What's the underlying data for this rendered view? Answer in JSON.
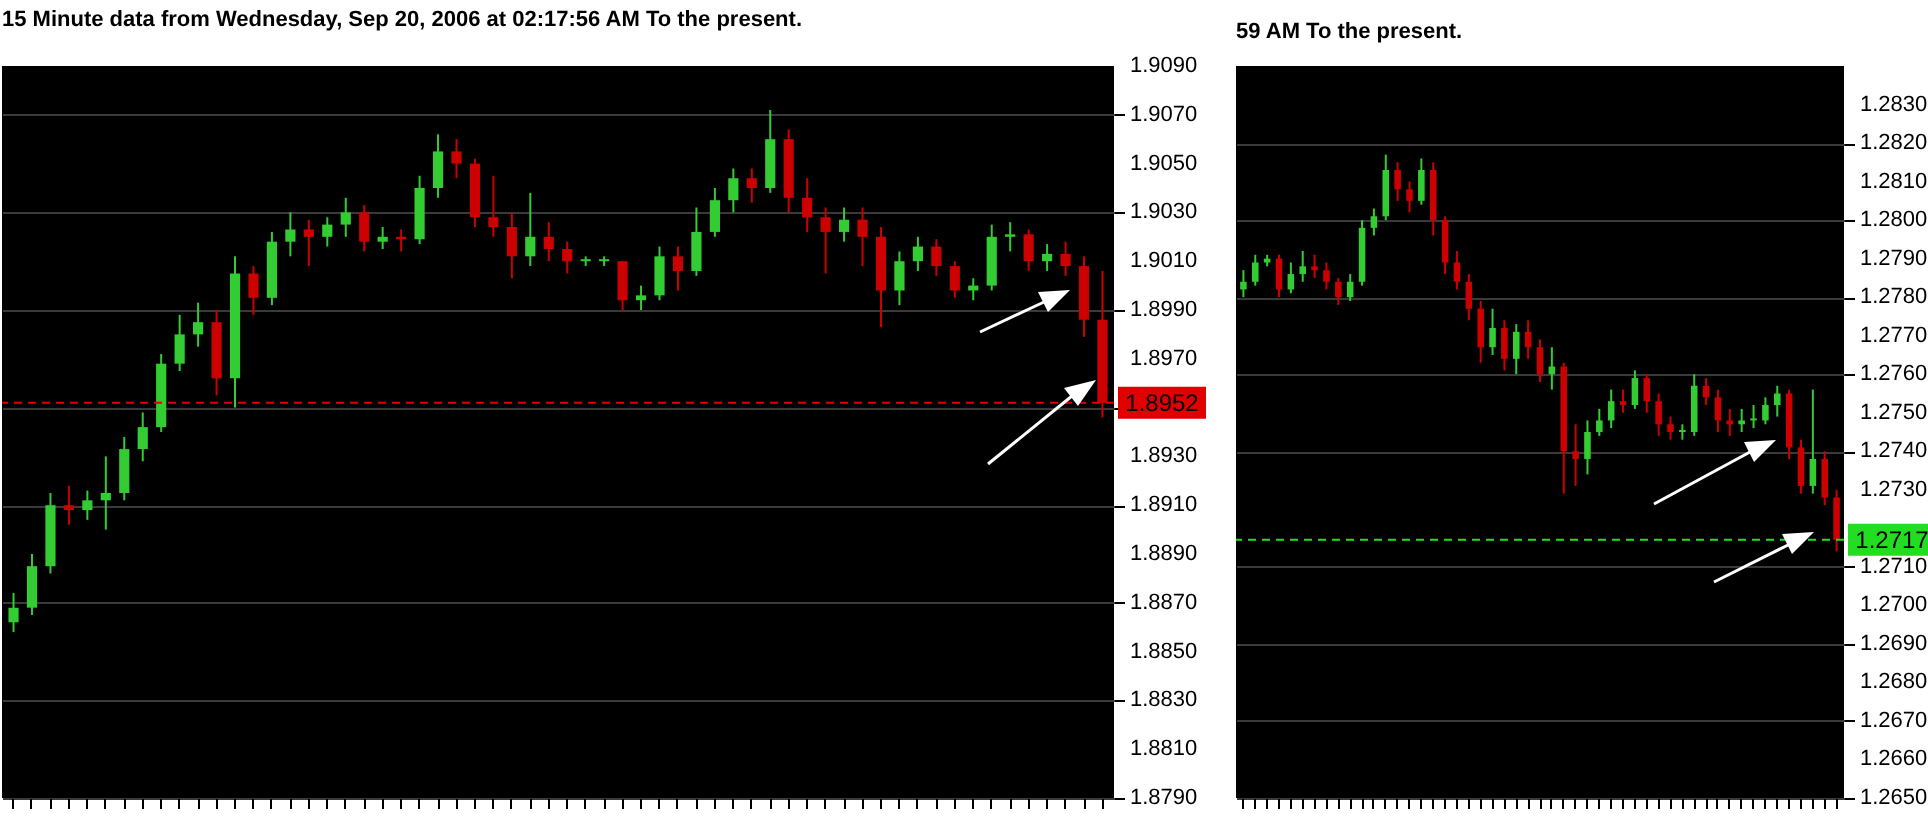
{
  "chart_data": [
    {
      "type": "candlestick",
      "title": "15 Minute  data from Wednesday, Sep 20, 2006 at 02:17:56 AM To the present.",
      "colors": [
        "#33cc33",
        "#33cc33",
        "#33cc33",
        "#cc0000",
        "#33cc33",
        "#33cc33",
        "#33cc33",
        "#33cc33",
        "#33cc33",
        "#33cc33",
        "#33cc33",
        "#cc0000",
        "#33cc33",
        "#cc0000",
        "#33cc33",
        "#33cc33",
        "#cc0000",
        "#33cc33",
        "#33cc33",
        "#cc0000",
        "#33cc33",
        "#cc0000",
        "#33cc33",
        "#33cc33",
        "#cc0000",
        "#cc0000",
        "#cc0000",
        "#cc0000",
        "#33cc33",
        "#cc0000",
        "#cc0000",
        "#33cc33",
        "#33cc33",
        "#cc0000",
        "#33cc33",
        "#33cc33",
        "#cc0000",
        "#33cc33",
        "#33cc33",
        "#33cc33",
        "#cc0000",
        "#33cc33",
        "#cc0000",
        "#cc0000",
        "#cc0000",
        "#33cc33",
        "#cc0000",
        "#cc0000",
        "#33cc33",
        "#33cc33",
        "#cc0000",
        "#cc0000",
        "#33cc33",
        "#33cc33",
        "#33cc33",
        "#cc0000",
        "#33cc33",
        "#cc0000",
        "#cc0000",
        "#cc0000"
      ],
      "categories": [
        null,
        null,
        null,
        null,
        null,
        null,
        null,
        null,
        null,
        null,
        null,
        null,
        null,
        null,
        null,
        null,
        null,
        null,
        null,
        null,
        null,
        null,
        null,
        null,
        null,
        null,
        null,
        null,
        null,
        null,
        null,
        null,
        null,
        null,
        null,
        null,
        null,
        null,
        null,
        null,
        null,
        null,
        null,
        null,
        null,
        null,
        null,
        null,
        null,
        null,
        null,
        null,
        null,
        null,
        null,
        null,
        null,
        null,
        null,
        null
      ],
      "ohlc": [
        [
          1.8862,
          1.8874,
          1.8858,
          1.8868
        ],
        [
          1.8868,
          1.889,
          1.8865,
          1.8885
        ],
        [
          1.8885,
          1.8915,
          1.8882,
          1.891
        ],
        [
          1.891,
          1.8918,
          1.8902,
          1.8908
        ],
        [
          1.8908,
          1.8916,
          1.8904,
          1.8912
        ],
        [
          1.8912,
          1.893,
          1.89,
          1.8915
        ],
        [
          1.8915,
          1.8938,
          1.8912,
          1.8933
        ],
        [
          1.8933,
          1.8948,
          1.8928,
          1.8942
        ],
        [
          1.8942,
          1.8972,
          1.894,
          1.8968
        ],
        [
          1.8968,
          1.8988,
          1.8965,
          1.898
        ],
        [
          1.898,
          1.8993,
          1.8975,
          1.8985
        ],
        [
          1.8985,
          1.899,
          1.8955,
          1.8962
        ],
        [
          1.8962,
          1.9012,
          1.895,
          1.9005
        ],
        [
          1.9005,
          1.9008,
          1.8988,
          1.8995
        ],
        [
          1.8995,
          1.9022,
          1.8992,
          1.9018
        ],
        [
          1.9018,
          1.903,
          1.9012,
          1.9023
        ],
        [
          1.9023,
          1.9027,
          1.9008,
          1.902
        ],
        [
          1.902,
          1.9028,
          1.9016,
          1.9025
        ],
        [
          1.9025,
          1.9036,
          1.902,
          1.903
        ],
        [
          1.903,
          1.9033,
          1.9014,
          1.9018
        ],
        [
          1.9018,
          1.9024,
          1.9015,
          1.902
        ],
        [
          1.902,
          1.9023,
          1.9014,
          1.9019
        ],
        [
          1.9019,
          1.9045,
          1.9017,
          1.904
        ],
        [
          1.904,
          1.9062,
          1.9036,
          1.9055
        ],
        [
          1.9055,
          1.906,
          1.9044,
          1.905
        ],
        [
          1.905,
          1.9052,
          1.9024,
          1.9028
        ],
        [
          1.9028,
          1.9045,
          1.902,
          1.9024
        ],
        [
          1.9024,
          1.903,
          1.9003,
          1.9012
        ],
        [
          1.9012,
          1.9038,
          1.9008,
          1.902
        ],
        [
          1.902,
          1.9026,
          1.901,
          1.9015
        ],
        [
          1.9015,
          1.9018,
          1.9005,
          1.901
        ],
        [
          1.901,
          1.9012,
          1.9008,
          1.901
        ],
        [
          1.901,
          1.9012,
          1.9008,
          1.901
        ],
        [
          1.901,
          1.901,
          1.899,
          1.8994
        ],
        [
          1.8994,
          1.9,
          1.899,
          1.8996
        ],
        [
          1.8996,
          1.9016,
          1.8994,
          1.9012
        ],
        [
          1.9012,
          1.9016,
          1.8998,
          1.9006
        ],
        [
          1.9006,
          1.9032,
          1.9004,
          1.9022
        ],
        [
          1.9022,
          1.904,
          1.902,
          1.9035
        ],
        [
          1.9035,
          1.9048,
          1.903,
          1.9044
        ],
        [
          1.9044,
          1.9048,
          1.9034,
          1.904
        ],
        [
          1.904,
          1.9072,
          1.9038,
          1.906
        ],
        [
          1.906,
          1.9064,
          1.903,
          1.9036
        ],
        [
          1.9036,
          1.9044,
          1.9022,
          1.9028
        ],
        [
          1.9028,
          1.9032,
          1.9005,
          1.9022
        ],
        [
          1.9022,
          1.9032,
          1.9018,
          1.9027
        ],
        [
          1.9027,
          1.9032,
          1.9008,
          1.902
        ],
        [
          1.902,
          1.9024,
          1.8983,
          1.8998
        ],
        [
          1.8998,
          1.9014,
          1.8992,
          1.901
        ],
        [
          1.901,
          1.902,
          1.9006,
          1.9016
        ],
        [
          1.9016,
          1.9019,
          1.9004,
          1.9008
        ],
        [
          1.9008,
          1.901,
          1.8995,
          1.8998
        ],
        [
          1.8998,
          1.9003,
          1.8994,
          1.9
        ],
        [
          1.9,
          1.9025,
          1.8998,
          1.902
        ],
        [
          1.902,
          1.9026,
          1.9014,
          1.9021
        ],
        [
          1.9021,
          1.9023,
          1.9006,
          1.901
        ],
        [
          1.901,
          1.9017,
          1.9006,
          1.9013
        ],
        [
          1.9013,
          1.9018,
          1.9004,
          1.9008
        ],
        [
          1.9008,
          1.9012,
          1.8979,
          1.8986
        ],
        [
          1.8986,
          1.9006,
          1.8946,
          1.8952
        ]
      ],
      "ylim": [
        1.879,
        1.909
      ],
      "yticks": [
        {
          "value": 1.879,
          "label": "1.8790"
        },
        {
          "value": 1.881,
          "label": "1.8810"
        },
        {
          "value": 1.883,
          "label": "1.8830"
        },
        {
          "value": 1.885,
          "label": "1.8850"
        },
        {
          "value": 1.887,
          "label": "1.8870"
        },
        {
          "value": 1.889,
          "label": "1.8890"
        },
        {
          "value": 1.891,
          "label": "1.8910"
        },
        {
          "value": 1.893,
          "label": "1.8930"
        },
        {
          "value": 1.895,
          "label": null
        },
        {
          "value": 1.897,
          "label": "1.8970"
        },
        {
          "value": 1.899,
          "label": "1.8990"
        },
        {
          "value": 1.901,
          "label": "1.9010"
        },
        {
          "value": 1.903,
          "label": "1.9030"
        },
        {
          "value": 1.905,
          "label": "1.9050"
        },
        {
          "value": 1.907,
          "label": "1.9070"
        },
        {
          "value": 1.909,
          "label": "1.9090"
        }
      ],
      "grid": "y",
      "tick_labels": "y",
      "ref_lines": [
        {
          "axis": "y",
          "value": 1.8952,
          "label": "1.8952",
          "color": "#e00000",
          "line_style": "dashed"
        }
      ]
    },
    {
      "type": "candlestick",
      "title": "59 AM To the present.",
      "colors": [
        "#33cc33",
        "#33cc33",
        "#33cc33",
        "#cc0000",
        "#33cc33",
        "#33cc33",
        "#cc0000",
        "#cc0000",
        "#cc0000",
        "#33cc33",
        "#33cc33",
        "#33cc33",
        "#33cc33",
        "#cc0000",
        "#cc0000",
        "#33cc33",
        "#cc0000",
        "#cc0000",
        "#cc0000",
        "#cc0000",
        "#cc0000",
        "#33cc33",
        "#cc0000",
        "#33cc33",
        "#cc0000",
        "#cc0000",
        "#33cc33",
        "#cc0000",
        "#cc0000",
        "#33cc33",
        "#33cc33",
        "#33cc33",
        "#cc0000",
        "#33cc33",
        "#cc0000",
        "#cc0000",
        "#cc0000",
        "#33cc33",
        "#33cc33",
        "#cc0000",
        "#cc0000",
        "#cc0000",
        "#33cc33",
        "#33cc33",
        "#33cc33",
        "#33cc33",
        "#cc0000",
        "#cc0000",
        "#33cc33",
        "#cc0000",
        "#cc0000"
      ],
      "categories": [
        null,
        null,
        null,
        null,
        null,
        null,
        null,
        null,
        null,
        null,
        null,
        null,
        null,
        null,
        null,
        null,
        null,
        null,
        null,
        null,
        null,
        null,
        null,
        null,
        null,
        null,
        null,
        null,
        null,
        null,
        null,
        null,
        null,
        null,
        null,
        null,
        null,
        null,
        null,
        null,
        null,
        null,
        null,
        null,
        null,
        null,
        null,
        null,
        null,
        null,
        null
      ],
      "ohlc": [
        [
          1.2782,
          1.2787,
          1.278,
          1.2784
        ],
        [
          1.2784,
          1.2791,
          1.2783,
          1.2789
        ],
        [
          1.2789,
          1.2791,
          1.2788,
          1.279
        ],
        [
          1.279,
          1.2791,
          1.278,
          1.2782
        ],
        [
          1.2782,
          1.2789,
          1.2781,
          1.2786
        ],
        [
          1.2786,
          1.2792,
          1.2784,
          1.2788
        ],
        [
          1.2788,
          1.2791,
          1.2785,
          1.2787
        ],
        [
          1.2787,
          1.2789,
          1.2782,
          1.2784
        ],
        [
          1.2784,
          1.2785,
          1.2778,
          1.278
        ],
        [
          1.278,
          1.2786,
          1.2779,
          1.2784
        ],
        [
          1.2784,
          1.28,
          1.2783,
          1.2798
        ],
        [
          1.2798,
          1.2803,
          1.2796,
          1.2801
        ],
        [
          1.2801,
          1.2817,
          1.28,
          1.2813
        ],
        [
          1.2813,
          1.2815,
          1.2805,
          1.2808
        ],
        [
          1.2808,
          1.281,
          1.2802,
          1.2805
        ],
        [
          1.2805,
          1.2816,
          1.2804,
          1.2813
        ],
        [
          1.2813,
          1.2815,
          1.2796,
          1.28
        ],
        [
          1.28,
          1.2801,
          1.2786,
          1.2789
        ],
        [
          1.2789,
          1.2792,
          1.2782,
          1.2784
        ],
        [
          1.2784,
          1.2786,
          1.2774,
          1.2777
        ],
        [
          1.2777,
          1.2779,
          1.2763,
          1.2767
        ],
        [
          1.2767,
          1.2777,
          1.2765,
          1.2772
        ],
        [
          1.2772,
          1.2774,
          1.2761,
          1.2764
        ],
        [
          1.2764,
          1.2773,
          1.276,
          1.2771
        ],
        [
          1.2771,
          1.2774,
          1.2764,
          1.2767
        ],
        [
          1.2767,
          1.2769,
          1.2758,
          1.276
        ],
        [
          1.276,
          1.2767,
          1.2756,
          1.2762
        ],
        [
          1.2762,
          1.2763,
          1.2729,
          1.274
        ],
        [
          1.274,
          1.2747,
          1.2731,
          1.2738
        ],
        [
          1.2738,
          1.2748,
          1.2734,
          1.2745
        ],
        [
          1.2745,
          1.2751,
          1.2744,
          1.2748
        ],
        [
          1.2748,
          1.2756,
          1.2746,
          1.2753
        ],
        [
          1.2753,
          1.2756,
          1.275,
          1.2752
        ],
        [
          1.2752,
          1.2761,
          1.2751,
          1.2759
        ],
        [
          1.2759,
          1.276,
          1.275,
          1.2753
        ],
        [
          1.2753,
          1.2755,
          1.2744,
          1.2747
        ],
        [
          1.2747,
          1.2749,
          1.2743,
          1.2745
        ],
        [
          1.2745,
          1.2747,
          1.2743,
          1.2745
        ],
        [
          1.2745,
          1.276,
          1.2744,
          1.2757
        ],
        [
          1.2757,
          1.2759,
          1.2752,
          1.2754
        ],
        [
          1.2754,
          1.2756,
          1.2745,
          1.2748
        ],
        [
          1.2748,
          1.2751,
          1.2744,
          1.2747
        ],
        [
          1.2747,
          1.2751,
          1.2745,
          1.2748
        ],
        [
          1.2748,
          1.2752,
          1.2746,
          1.2748
        ],
        [
          1.2748,
          1.2754,
          1.2747,
          1.2752
        ],
        [
          1.2752,
          1.2757,
          1.2749,
          1.2755
        ],
        [
          1.2755,
          1.2756,
          1.2738,
          1.2741
        ],
        [
          1.2741,
          1.2743,
          1.2729,
          1.2731
        ],
        [
          1.2731,
          1.2756,
          1.2729,
          1.2738
        ],
        [
          1.2738,
          1.274,
          1.2726,
          1.2728
        ],
        [
          1.2728,
          1.273,
          1.2714,
          1.2717
        ]
      ],
      "ylim": [
        1.265,
        1.284
      ],
      "yticks": [
        {
          "value": 1.265,
          "label": "1.2650"
        },
        {
          "value": 1.266,
          "label": "1.2660"
        },
        {
          "value": 1.267,
          "label": "1.2670"
        },
        {
          "value": 1.268,
          "label": "1.2680"
        },
        {
          "value": 1.269,
          "label": "1.2690"
        },
        {
          "value": 1.27,
          "label": "1.2700"
        },
        {
          "value": 1.271,
          "label": "1.2710"
        },
        {
          "value": 1.273,
          "label": "1.2730"
        },
        {
          "value": 1.274,
          "label": "1.2740"
        },
        {
          "value": 1.275,
          "label": "1.2750"
        },
        {
          "value": 1.276,
          "label": "1.2760"
        },
        {
          "value": 1.277,
          "label": "1.2770"
        },
        {
          "value": 1.278,
          "label": "1.2780"
        },
        {
          "value": 1.279,
          "label": "1.2790"
        },
        {
          "value": 1.28,
          "label": "1.2800"
        },
        {
          "value": 1.281,
          "label": "1.2810"
        },
        {
          "value": 1.282,
          "label": "1.2820"
        },
        {
          "value": 1.283,
          "label": "1.2830"
        }
      ],
      "grid": "y",
      "tick_labels": "y",
      "ref_lines": [
        {
          "axis": "y",
          "value": 1.2717,
          "label": "1.2717",
          "color": "#22dd22",
          "line_style": "dashed"
        }
      ]
    }
  ]
}
